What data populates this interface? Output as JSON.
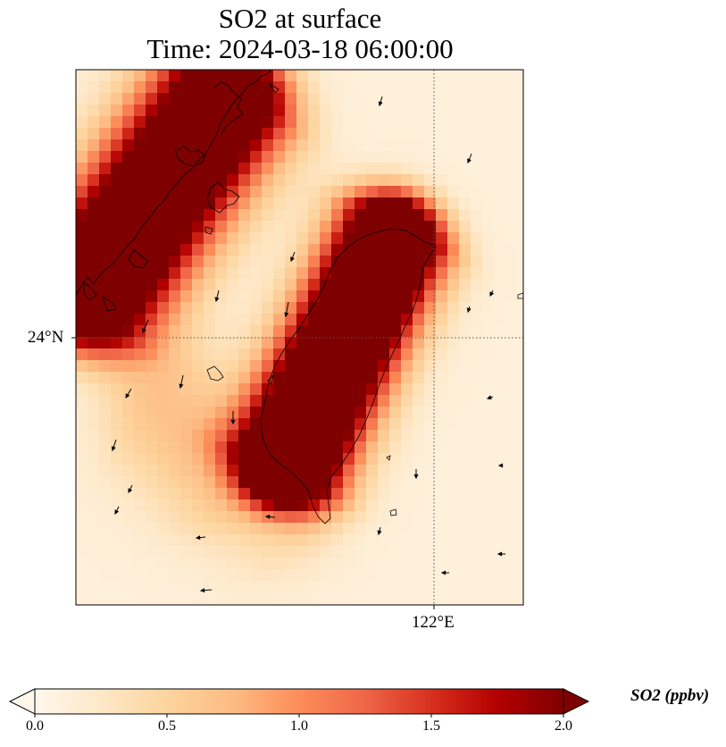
{
  "title": {
    "line1": "SO2 at surface",
    "line2": "Time: 2024-03-18 06:00:00"
  },
  "map": {
    "lat_label": "24°N",
    "lon_label": "122°E",
    "gridline_lat": 24,
    "gridline_lon": 122,
    "features": [
      "coastline",
      "wind-vectors",
      "so2-concentration-field"
    ]
  },
  "colorbar": {
    "label": "SO2 (ppbv)",
    "ticks": [
      "0.0",
      "0.5",
      "1.0",
      "1.5",
      "2.0"
    ],
    "range": [
      0.0,
      2.0
    ],
    "extend": "both",
    "colormap": "OrRd",
    "colors": [
      "#fff7ec",
      "#fee8c8",
      "#fdd49e",
      "#fdbb84",
      "#fc8d59",
      "#ef6548",
      "#d7301f",
      "#b30000",
      "#7f0000"
    ]
  }
}
